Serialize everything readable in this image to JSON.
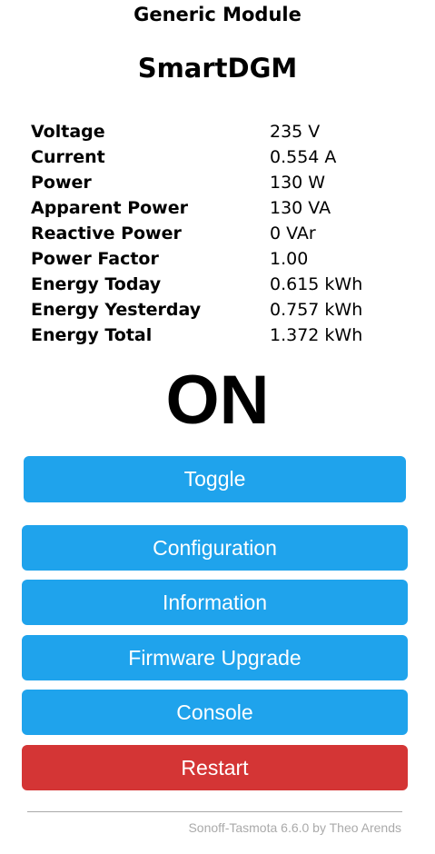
{
  "header": {
    "module": "Generic Module",
    "device": "SmartDGM"
  },
  "sensors": [
    {
      "label": "Voltage",
      "value": "235 V"
    },
    {
      "label": "Current",
      "value": "0.554 A"
    },
    {
      "label": "Power",
      "value": "130 W"
    },
    {
      "label": "Apparent Power",
      "value": "130 VA"
    },
    {
      "label": "Reactive Power",
      "value": "0 VAr"
    },
    {
      "label": "Power Factor",
      "value": "1.00"
    },
    {
      "label": "Energy Today",
      "value": "0.615 kWh"
    },
    {
      "label": "Energy Yesterday",
      "value": "0.757 kWh"
    },
    {
      "label": "Energy Total",
      "value": "1.372 kWh"
    }
  ],
  "state": "ON",
  "buttons": {
    "toggle": "Toggle",
    "configuration": "Configuration",
    "information": "Information",
    "firmware_upgrade": "Firmware Upgrade",
    "console": "Console",
    "restart": "Restart"
  },
  "colors": {
    "button": "#1fa3ec",
    "restart_button": "#d43535",
    "footer_text": "#aaaaaa"
  },
  "footer": "Sonoff-Tasmota 6.6.0 by Theo Arends"
}
